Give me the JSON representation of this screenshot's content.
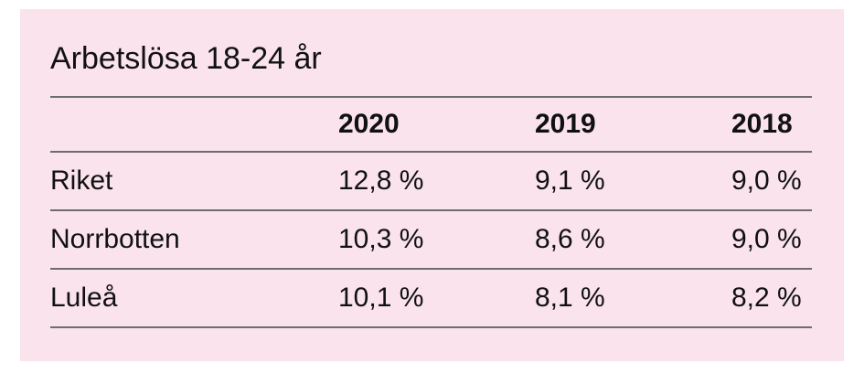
{
  "card": {
    "background": "#fae3ec",
    "rule_color": "#6d6d6d",
    "text_color": "#111111"
  },
  "table": {
    "title": "Arbetslösa 18-24 år",
    "columns": [
      "2020",
      "2019",
      "2018"
    ],
    "rows": [
      {
        "label": "Riket",
        "values": [
          "12,8 %",
          "9,1 %",
          "9,0 %"
        ]
      },
      {
        "label": "Norrbotten",
        "values": [
          "10,3 %",
          "8,6 %",
          "9,0 %"
        ]
      },
      {
        "label": "Luleå",
        "values": [
          "10,1 %",
          "8,1 %",
          "8,2 %"
        ]
      }
    ]
  },
  "chart_data": {
    "type": "table",
    "title": "Arbetslösa 18-24 år",
    "columns": [
      "",
      "2020",
      "2019",
      "2018"
    ],
    "rows": [
      [
        "Riket",
        "12,8 %",
        "9,1 %",
        "9,0 %"
      ],
      [
        "Norrbotten",
        "10,3 %",
        "8,6 %",
        "9,0 %"
      ],
      [
        "Luleå",
        "10,1 %",
        "8,1 %",
        "8,2 %"
      ]
    ],
    "values_percent": {
      "Riket": {
        "2020": 12.8,
        "2019": 9.1,
        "2018": 9.0
      },
      "Norrbotten": {
        "2020": 10.3,
        "2019": 8.6,
        "2018": 9.0
      },
      "Luleå": {
        "2020": 10.1,
        "2019": 8.1,
        "2018": 8.2
      }
    }
  }
}
